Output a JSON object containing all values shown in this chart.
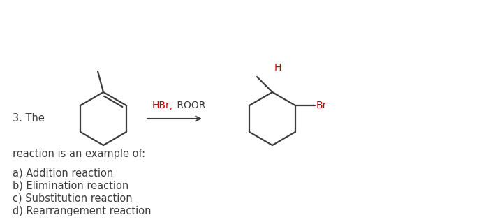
{
  "bg_color": "#ffffff",
  "text_color": "#3d3d3d",
  "red_color": "#cc0000",
  "dark_color": "#3d3d3d",
  "reagent_hbr": "HBr,",
  "reagent_roor": " ROOR",
  "question_number": "3. The",
  "line1": "reaction is an example of:",
  "line2": "a) Addition reaction",
  "line3": "b) Elimination reaction",
  "line4": "c) Substitution reaction",
  "line5": "d) Rearrangement reaction",
  "H_label": "H",
  "Br_label": "Br",
  "font_size_main": 10.5,
  "font_size_chem": 10
}
